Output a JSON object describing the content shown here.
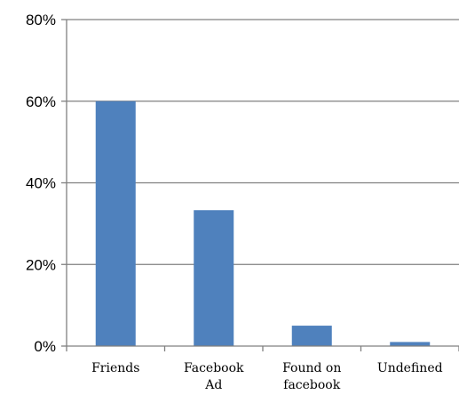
{
  "chart_data": {
    "type": "bar",
    "title": "",
    "xlabel": "",
    "ylabel": "",
    "categories": [
      "Friends",
      "Facebook Ad",
      "Found on facebook",
      "Undefined"
    ],
    "category_label_lines": [
      [
        "Friends"
      ],
      [
        "Facebook",
        "Ad"
      ],
      [
        "Found on",
        "facebook"
      ],
      [
        "Undefined"
      ]
    ],
    "values": [
      60,
      33.3,
      5,
      1
    ],
    "ylim": [
      0,
      80
    ],
    "yticks": [
      0,
      20,
      40,
      60,
      80
    ],
    "ytick_labels": [
      "0%",
      "20%",
      "40%",
      "60%",
      "80%"
    ],
    "grid": true,
    "legend": "none",
    "colors": {
      "bar": "#4F81BD",
      "grid": "#808080",
      "axis": "#808080"
    }
  }
}
